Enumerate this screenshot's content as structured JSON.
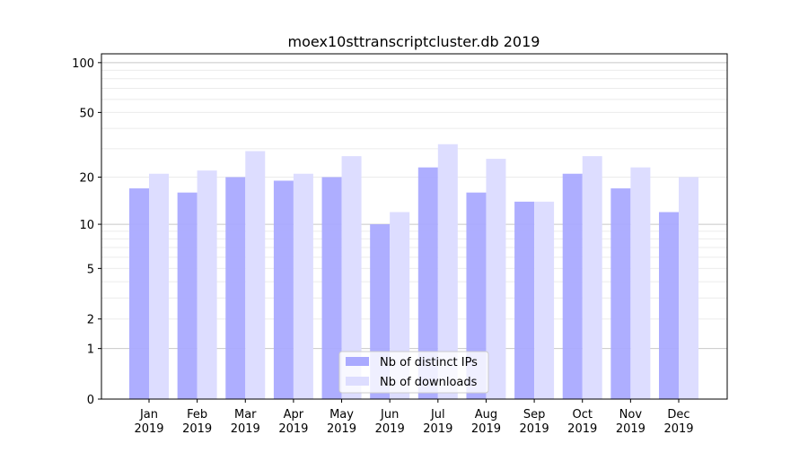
{
  "chart_data": {
    "type": "bar",
    "title": "moex10sttranscriptcluster.db 2019",
    "xlabel": "",
    "ylabel": "",
    "y_scale": "log(1+y)",
    "ylim": [
      0,
      113
    ],
    "yticks": [
      0,
      1,
      2,
      5,
      10,
      20,
      50,
      100
    ],
    "grid": true,
    "legend_placement": "lower-center",
    "categories": [
      "Jan\n2019",
      "Feb\n2019",
      "Mar\n2019",
      "Apr\n2019",
      "May\n2019",
      "Jun\n2019",
      "Jul\n2019",
      "Aug\n2019",
      "Sep\n2019",
      "Oct\n2019",
      "Nov\n2019",
      "Dec\n2019"
    ],
    "series": [
      {
        "name": "Nb of distinct IPs",
        "color": "#aaaaff",
        "values": [
          17,
          16,
          20,
          19,
          20,
          10,
          23,
          16,
          14,
          21,
          17,
          12
        ]
      },
      {
        "name": "Nb of downloads",
        "color": "#ddddff",
        "values": [
          21,
          22,
          29,
          21,
          27,
          12,
          32,
          26,
          14,
          27,
          23,
          20
        ]
      }
    ]
  }
}
